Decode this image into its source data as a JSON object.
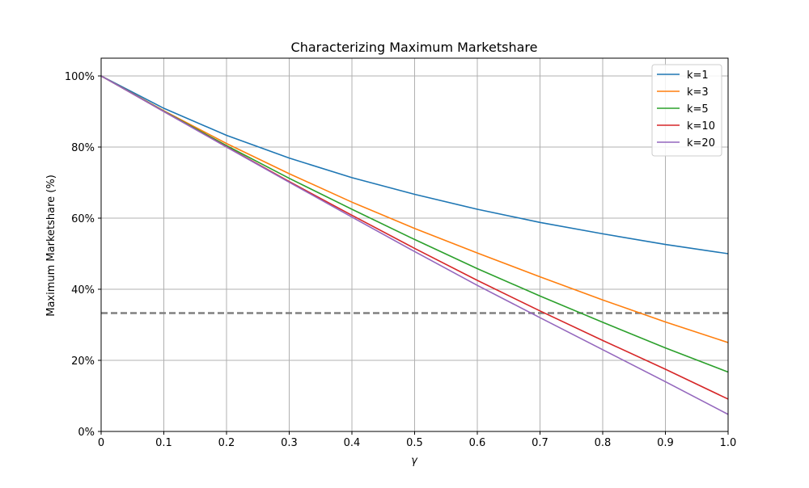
{
  "chart_data": {
    "type": "line",
    "title": "Characterizing Maximum Marketshare",
    "xlabel": "γ",
    "ylabel": "Maximum Marketshare (%)",
    "xlim": [
      0,
      1
    ],
    "ylim": [
      0,
      1.05
    ],
    "grid": true,
    "legend_position": "top-right",
    "x_ticks": [
      0,
      0.1,
      0.2,
      0.3,
      0.4,
      0.5,
      0.6,
      0.7,
      0.8,
      0.9,
      1.0
    ],
    "x_tick_labels": [
      "0",
      "0.1",
      "0.2",
      "0.3",
      "0.4",
      "0.5",
      "0.6",
      "0.7",
      "0.8",
      "0.9",
      "1.0"
    ],
    "y_ticks": [
      0,
      0.2,
      0.4,
      0.6,
      0.8,
      1.0
    ],
    "y_tick_labels": [
      "0%",
      "20%",
      "40%",
      "60%",
      "80%",
      "100%"
    ],
    "x": [
      0,
      0.1,
      0.2,
      0.3,
      0.4,
      0.5,
      0.6,
      0.7,
      0.8,
      0.9,
      1.0
    ],
    "series": [
      {
        "name": "k=1",
        "color": "#1f77b4",
        "values": [
          1.0,
          0.909,
          0.833,
          0.769,
          0.714,
          0.667,
          0.625,
          0.588,
          0.556,
          0.526,
          0.5
        ]
      },
      {
        "name": "k=3",
        "color": "#ff7f0e",
        "values": [
          1.0,
          0.902,
          0.81,
          0.725,
          0.645,
          0.571,
          0.502,
          0.435,
          0.37,
          0.308,
          0.25
        ]
      },
      {
        "name": "k=5",
        "color": "#2ca02c",
        "values": [
          1.0,
          0.901,
          0.804,
          0.712,
          0.625,
          0.54,
          0.458,
          0.381,
          0.307,
          0.235,
          0.167
        ]
      },
      {
        "name": "k=10",
        "color": "#d62728",
        "values": [
          1.0,
          0.9,
          0.801,
          0.703,
          0.608,
          0.515,
          0.425,
          0.339,
          0.256,
          0.175,
          0.091
        ]
      },
      {
        "name": "k=20",
        "color": "#9467bd",
        "values": [
          1.0,
          0.9,
          0.8,
          0.701,
          0.603,
          0.506,
          0.411,
          0.32,
          0.23,
          0.14,
          0.048
        ]
      }
    ],
    "reference_line": {
      "y": 0.333,
      "color": "#808080",
      "style": "dashed"
    }
  }
}
